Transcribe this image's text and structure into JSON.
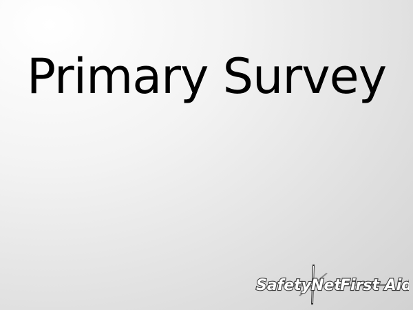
{
  "slide": {
    "title": "Primary Survey"
  },
  "logo": {
    "text_part1": "SafetyNet",
    "text_part2": "First Aid",
    "icon": "crosshair-star-icon"
  },
  "colors": {
    "title_text": "#000000",
    "logo_text": "#ffffff",
    "logo_shadow": "#3a3a3a",
    "background_light": "#ffffff",
    "background_dark": "#d2d2d2"
  }
}
